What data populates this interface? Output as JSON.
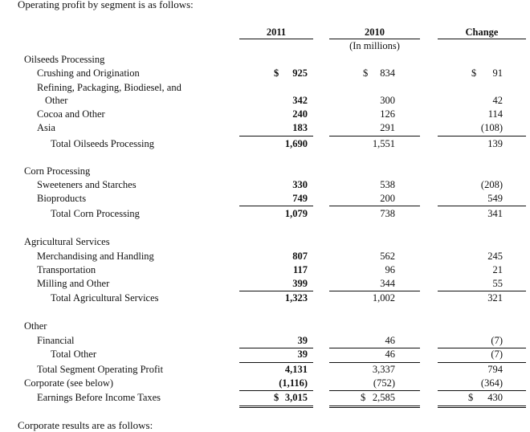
{
  "intro": "Operating profit by segment is as follows:",
  "outro": "Corporate results are as follows:",
  "header": {
    "col_2011": "2011",
    "col_2010": "2010",
    "col_change": "Change",
    "units": "(In millions)"
  },
  "currency": "$",
  "rows": [
    {
      "label": "Oilseeds Processing",
      "v2011": "",
      "v2010": "",
      "change": ""
    },
    {
      "label": "Crushing and Origination",
      "v2011": "925",
      "v2010": "834",
      "change": "91"
    },
    {
      "label": "Refining, Packaging, Biodiesel, and",
      "v2011": "",
      "v2010": "",
      "change": ""
    },
    {
      "label": "Other",
      "v2011": "342",
      "v2010": "300",
      "change": "42"
    },
    {
      "label": "Cocoa and Other",
      "v2011": "240",
      "v2010": "126",
      "change": "114"
    },
    {
      "label": "Asia",
      "v2011": "183",
      "v2010": "291",
      "change": "(108)"
    },
    {
      "label": "Total Oilseeds Processing",
      "v2011": "1,690",
      "v2010": "1,551",
      "change": "139"
    },
    {
      "label": "Corn Processing",
      "v2011": "",
      "v2010": "",
      "change": ""
    },
    {
      "label": "Sweeteners and Starches",
      "v2011": "330",
      "v2010": "538",
      "change": "(208)"
    },
    {
      "label": "Bioproducts",
      "v2011": "749",
      "v2010": "200",
      "change": "549"
    },
    {
      "label": "Total Corn Processing",
      "v2011": "1,079",
      "v2010": "738",
      "change": "341"
    },
    {
      "label": "Agricultural Services",
      "v2011": "",
      "v2010": "",
      "change": ""
    },
    {
      "label": "Merchandising and Handling",
      "v2011": "807",
      "v2010": "562",
      "change": "245"
    },
    {
      "label": "Transportation",
      "v2011": "117",
      "v2010": "96",
      "change": "21"
    },
    {
      "label": "Milling and Other",
      "v2011": "399",
      "v2010": "344",
      "change": "55"
    },
    {
      "label": "Total Agricultural Services",
      "v2011": "1,323",
      "v2010": "1,002",
      "change": "321"
    },
    {
      "label": "Other",
      "v2011": "",
      "v2010": "",
      "change": ""
    },
    {
      "label": "Financial",
      "v2011": "39",
      "v2010": "46",
      "change": "(7)"
    },
    {
      "label": "Total Other",
      "v2011": "39",
      "v2010": "46",
      "change": "(7)"
    },
    {
      "label": "Total Segment Operating Profit",
      "v2011": "4,131",
      "v2010": "3,337",
      "change": "794"
    },
    {
      "label": "Corporate (see below)",
      "v2011": "(1,116)",
      "v2010": "(752)",
      "change": "(364)"
    },
    {
      "label": "Earnings Before Income Taxes",
      "v2011": "3,015",
      "v2010": "2,585",
      "change": "430"
    }
  ]
}
